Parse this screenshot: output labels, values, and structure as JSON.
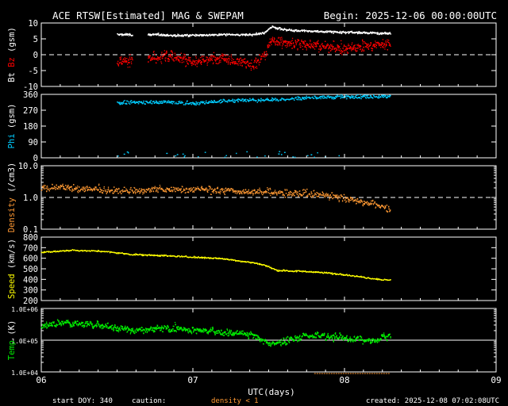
{
  "header": {
    "title": "ACE RTSW[Estimated] MAG & SWEPAM",
    "begin": "Begin: 2025-12-06 00:00:00UTC"
  },
  "xaxis": {
    "label": "UTC(days)",
    "ticks": [
      "06",
      "07",
      "08",
      "09"
    ],
    "range_days": [
      0,
      3
    ],
    "data_end_day": 2.3
  },
  "footer": {
    "start_doy": "start DOY: 340",
    "caution": "caution:",
    "density_note": "density < 1",
    "created": "created: 2025-12-08 07:02:08UTC"
  },
  "colors": {
    "bt": "#ffffff",
    "bz": "#ff0000",
    "phi": "#00ccff",
    "density": "#ff9933",
    "speed": "#ffff00",
    "temp": "#00ee00",
    "axis": "#ffffff"
  },
  "chart_data": [
    {
      "type": "scatter",
      "id": "mag",
      "ylabel_parts": [
        "Bt",
        "Bz",
        "(gsm)"
      ],
      "ylim": [
        -10,
        10
      ],
      "yticks": [
        "10",
        "5",
        "0",
        "-5",
        "-10"
      ],
      "reference_line": 0,
      "series": [
        {
          "name": "Bt",
          "x": [
            0.5,
            0.8,
            0.81,
            1.0,
            1.2,
            1.4,
            1.47,
            1.52,
            1.6,
            1.8,
            2.0,
            2.2,
            2.3
          ],
          "values": [
            6.5,
            6.5,
            6.2,
            6.3,
            6.4,
            6.5,
            7.0,
            9.0,
            8.0,
            7.5,
            7.2,
            7.0,
            7.0
          ]
        },
        {
          "name": "Bz",
          "x": [
            0.5,
            0.8,
            0.81,
            1.0,
            1.2,
            1.4,
            1.47,
            1.52,
            1.6,
            1.8,
            2.0,
            2.2,
            2.3
          ],
          "values": [
            -2,
            -1,
            0,
            -2,
            -1,
            -3,
            0,
            5,
            4,
            3,
            2,
            3,
            3.5
          ]
        }
      ],
      "gaps": [
        [
          0.6,
          0.7
        ]
      ]
    },
    {
      "type": "scatter",
      "id": "phi",
      "ylabel_parts": [
        "Phi",
        "(gsm)"
      ],
      "ylim": [
        0,
        360
      ],
      "yticks": [
        "360",
        "270",
        "180",
        "90",
        "0"
      ],
      "series": [
        {
          "name": "Phi",
          "x": [
            0.5,
            0.8,
            1.0,
            1.2,
            1.4,
            1.6,
            1.8,
            2.0,
            2.2,
            2.3
          ],
          "values": [
            315,
            320,
            310,
            325,
            330,
            335,
            345,
            350,
            350,
            350
          ]
        }
      ]
    },
    {
      "type": "scatter",
      "id": "density",
      "ylabel_parts": [
        "Density",
        "(/cm3)"
      ],
      "yscale": "log",
      "ylim": [
        0.1,
        10
      ],
      "yticks": [
        "10.0",
        "1.0",
        "0.1"
      ],
      "reference_line": 1.0,
      "series": [
        {
          "name": "Density",
          "x": [
            0,
            0.2,
            0.4,
            0.6,
            0.8,
            1.0,
            1.2,
            1.4,
            1.6,
            1.8,
            2.0,
            2.2,
            2.3
          ],
          "values": [
            2.2,
            2.0,
            1.8,
            1.7,
            1.8,
            1.9,
            1.7,
            1.6,
            1.4,
            1.3,
            1.0,
            0.6,
            0.45
          ]
        }
      ]
    },
    {
      "type": "scatter",
      "id": "speed",
      "ylabel_parts": [
        "Speed",
        "(km/s)"
      ],
      "ylim": [
        200,
        800
      ],
      "yticks": [
        "800",
        "700",
        "600",
        "500",
        "400",
        "300",
        "200"
      ],
      "series": [
        {
          "name": "Speed",
          "x": [
            0,
            0.2,
            0.4,
            0.6,
            0.8,
            1.0,
            1.2,
            1.4,
            1.47,
            1.55,
            1.8,
            2.0,
            2.2,
            2.3
          ],
          "values": [
            660,
            680,
            670,
            640,
            630,
            615,
            600,
            560,
            540,
            490,
            475,
            450,
            410,
            395
          ]
        }
      ]
    },
    {
      "type": "scatter",
      "id": "temp",
      "ylabel_parts": [
        "Temp",
        "(K)"
      ],
      "yscale": "log",
      "ylim": [
        10000,
        1000000
      ],
      "yticks": [
        "1.0E+06",
        "1.0E+05",
        "1.0E+04"
      ],
      "reference_line": 100000,
      "series": [
        {
          "name": "Temp",
          "x": [
            0,
            0.2,
            0.4,
            0.6,
            0.8,
            1.0,
            1.2,
            1.4,
            1.5,
            1.6,
            1.8,
            2.0,
            2.2,
            2.3
          ],
          "values": [
            300000,
            350000,
            300000,
            200000,
            250000,
            220000,
            180000,
            150000,
            70000,
            100000,
            150000,
            120000,
            100000,
            150000
          ]
        }
      ]
    }
  ]
}
